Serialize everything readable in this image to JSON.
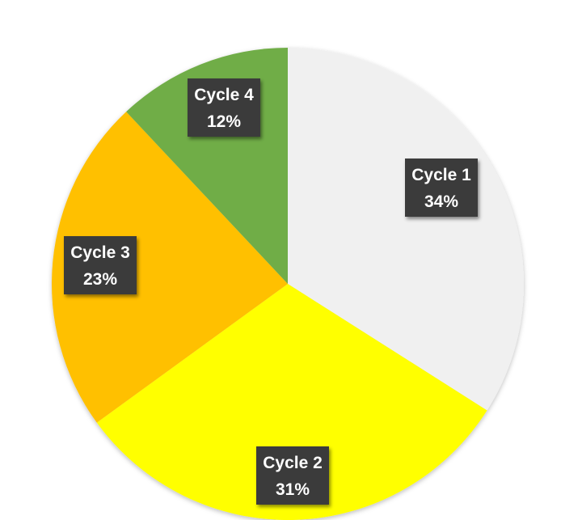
{
  "chart_data": {
    "type": "pie",
    "title": "",
    "slices": [
      {
        "label": "Cycle 1",
        "value": 34,
        "value_label": "34%",
        "color": "#f0f0f0"
      },
      {
        "label": "Cycle 2",
        "value": 31,
        "value_label": "31%",
        "color": "#ffff00"
      },
      {
        "label": "Cycle 3",
        "value": 23,
        "value_label": "23%",
        "color": "#ffc000"
      },
      {
        "label": "Cycle 4",
        "value": 12,
        "value_label": "12%",
        "color": "#70ad47"
      }
    ],
    "start_angle_deg": 0,
    "direction": "clockwise",
    "data_labels": "category and percentage",
    "legend": "none"
  },
  "colors": {
    "label_box": "#3a3a3a",
    "label_text": "#ffffff",
    "background": "#ffffff"
  }
}
